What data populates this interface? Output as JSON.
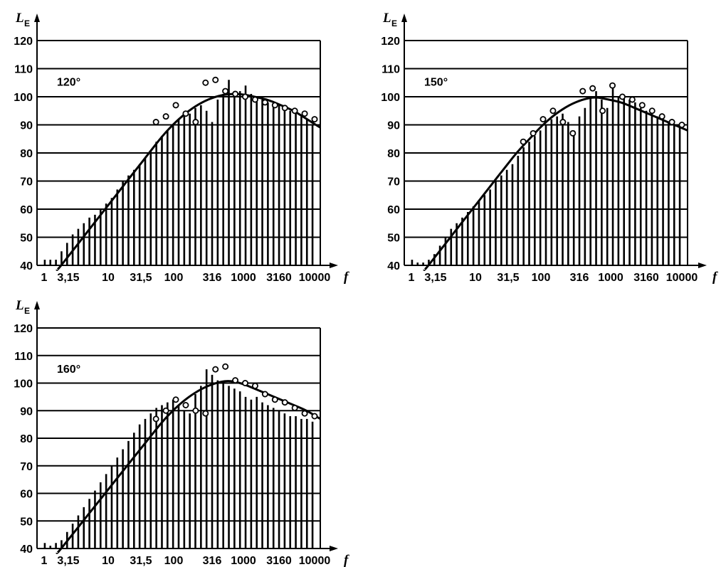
{
  "chart_data": [
    {
      "type": "bar",
      "panel_label": "120°",
      "ylabel": "L",
      "ylabel_sub": "E",
      "xlabel": "f",
      "ylim": [
        40,
        120
      ],
      "y_ticks": [
        "40",
        "50",
        "60",
        "70",
        "80",
        "90",
        "100",
        "110",
        "120"
      ],
      "x_tick_labels": [
        "1",
        "3,15",
        "10",
        "31,5",
        "100",
        "316",
        "1000",
        "3160",
        "10000"
      ],
      "grid": "horizontal",
      "bars": [
        42,
        42,
        42,
        45,
        48,
        51,
        53,
        55,
        57,
        58,
        60,
        62,
        64,
        67,
        70,
        72,
        74,
        76,
        78,
        81,
        84,
        86,
        88,
        90,
        92,
        93,
        94,
        96,
        97,
        95,
        91,
        99,
        101,
        106,
        102,
        102,
        104,
        101,
        100,
        99,
        98,
        98,
        97,
        96,
        95,
        94,
        93,
        92,
        90
      ],
      "markers": [
        91,
        93,
        97,
        94,
        91,
        105,
        106,
        102,
        101,
        100,
        99,
        98,
        97,
        96,
        95,
        94,
        92
      ],
      "curve": [
        38,
        44,
        50,
        56,
        62,
        68,
        74,
        80,
        86,
        91,
        95,
        98,
        100,
        101,
        101,
        100,
        99,
        97,
        95,
        92,
        89
      ]
    },
    {
      "type": "bar",
      "panel_label": "150°",
      "ylabel": "L",
      "ylabel_sub": "E",
      "xlabel": "f",
      "ylim": [
        40,
        120
      ],
      "y_ticks": [
        "40",
        "50",
        "60",
        "70",
        "80",
        "90",
        "100",
        "110",
        "120"
      ],
      "x_tick_labels": [
        "1",
        "3,15",
        "10",
        "31,5",
        "100",
        "316",
        "1000",
        "3160",
        "10000"
      ],
      "grid": "horizontal",
      "bars": [
        42,
        41,
        41,
        42,
        44,
        47,
        50,
        53,
        55,
        57,
        59,
        61,
        63,
        65,
        67,
        70,
        72,
        74,
        76,
        79,
        82,
        84,
        86,
        88,
        90,
        92,
        93,
        94,
        91,
        88,
        93,
        96,
        100,
        102,
        99,
        96,
        103,
        100,
        100,
        99,
        98,
        96,
        95,
        94,
        93,
        92,
        91,
        90,
        90
      ],
      "markers": [
        84,
        87,
        92,
        95,
        91,
        87,
        102,
        103,
        95,
        104,
        100,
        99,
        97,
        95,
        93,
        91,
        90
      ],
      "curve": [
        38,
        44,
        50,
        56,
        62,
        68,
        74,
        80,
        85,
        90,
        94,
        97,
        99,
        100,
        99,
        98,
        96,
        94,
        92,
        90,
        88
      ]
    },
    {
      "type": "bar",
      "panel_label": "160°",
      "ylabel": "L",
      "ylabel_sub": "E",
      "xlabel": "f",
      "ylim": [
        40,
        120
      ],
      "y_ticks": [
        "40",
        "50",
        "60",
        "70",
        "80",
        "90",
        "100",
        "110",
        "120"
      ],
      "x_tick_labels": [
        "1",
        "3,15",
        "10",
        "31,5",
        "100",
        "316",
        "1000",
        "3160",
        "10000"
      ],
      "grid": "horizontal",
      "bars": [
        42,
        41,
        42,
        43,
        46,
        49,
        52,
        55,
        58,
        61,
        64,
        67,
        70,
        73,
        76,
        79,
        82,
        85,
        87,
        89,
        91,
        92,
        93,
        94,
        92,
        90,
        89,
        96,
        99,
        105,
        103,
        101,
        100,
        99,
        98,
        97,
        95,
        94,
        95,
        93,
        92,
        91,
        90,
        89,
        88,
        88,
        87,
        87,
        86
      ],
      "markers": [
        87,
        90,
        94,
        92,
        90,
        89,
        105,
        106,
        101,
        100,
        99,
        96,
        94,
        93,
        91,
        89,
        88
      ],
      "curve": [
        38,
        44,
        50,
        56,
        62,
        68,
        74,
        80,
        86,
        91,
        95,
        98,
        100,
        101,
        100,
        98,
        96,
        94,
        92,
        90,
        87
      ]
    }
  ]
}
